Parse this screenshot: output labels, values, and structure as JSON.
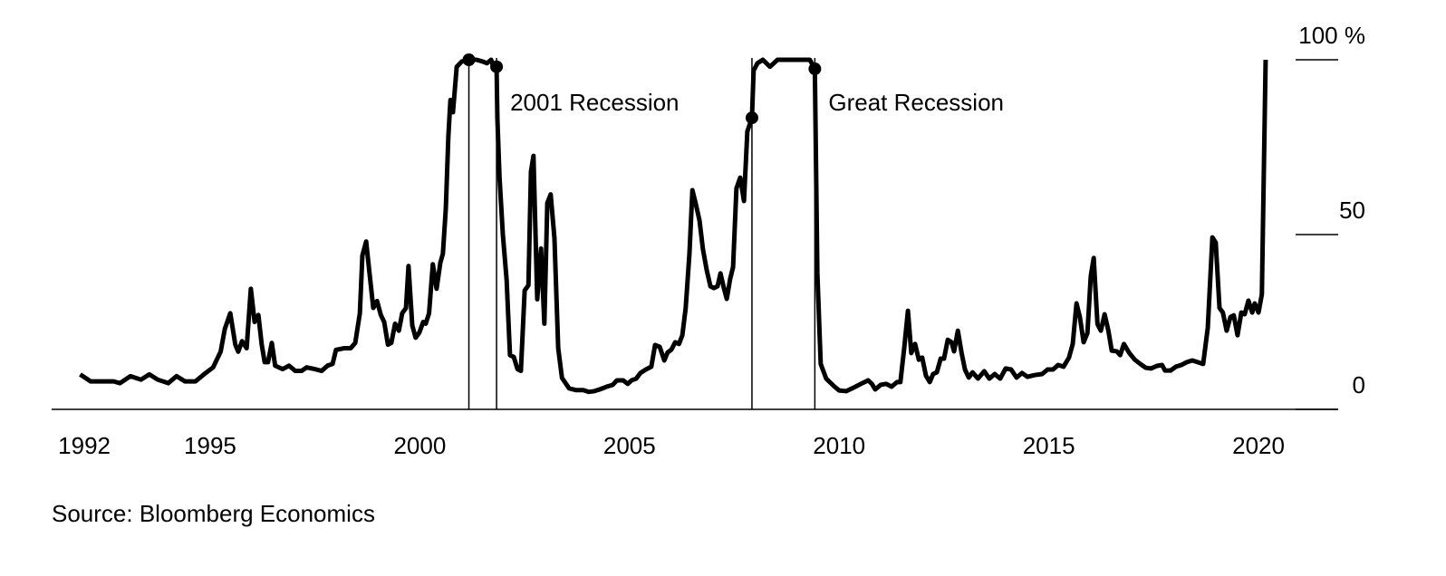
{
  "chart_data": {
    "type": "line",
    "x": [
      1991.9,
      1992.15,
      1992.5,
      1992.7,
      1992.85,
      1993.1,
      1993.35,
      1993.55,
      1993.75,
      1994.0,
      1994.2,
      1994.4,
      1994.65,
      1994.85,
      1995.07,
      1995.25,
      1995.35,
      1995.48,
      1995.6,
      1995.67,
      1995.76,
      1995.87,
      1995.97,
      1996.06,
      1996.15,
      1996.23,
      1996.3,
      1996.38,
      1996.47,
      1996.55,
      1996.73,
      1996.88,
      1997.03,
      1997.18,
      1997.3,
      1997.5,
      1997.66,
      1997.8,
      1997.92,
      1998.0,
      1998.2,
      1998.35,
      1998.46,
      1998.57,
      1998.63,
      1998.72,
      1998.8,
      1998.89,
      1998.98,
      1999.07,
      1999.15,
      1999.24,
      1999.32,
      1999.41,
      1999.5,
      1999.58,
      1999.67,
      1999.73,
      1999.82,
      1999.9,
      1999.99,
      2000.08,
      2000.14,
      2000.22,
      2000.31,
      2000.4,
      2000.49,
      2000.55,
      2000.62,
      2000.68,
      2000.73,
      2000.79,
      2000.88,
      2001.0,
      2001.17,
      2001.35,
      2001.5,
      2001.6,
      2001.7,
      2001.77,
      2001.83,
      2001.85,
      2001.9,
      2001.98,
      2002.07,
      2002.15,
      2002.24,
      2002.33,
      2002.41,
      2002.5,
      2002.59,
      2002.65,
      2002.71,
      2002.8,
      2002.89,
      2002.97,
      2003.04,
      2003.12,
      2003.21,
      2003.3,
      2003.39,
      2003.56,
      2003.73,
      2003.9,
      2004.03,
      2004.16,
      2004.29,
      2004.46,
      2004.6,
      2004.7,
      2004.85,
      2004.96,
      2005.05,
      2005.16,
      2005.26,
      2005.39,
      2005.52,
      2005.61,
      2005.72,
      2005.83,
      2005.91,
      2006.0,
      2006.09,
      2006.18,
      2006.26,
      2006.34,
      2006.43,
      2006.5,
      2006.58,
      2006.67,
      2006.75,
      2006.84,
      2006.93,
      2007.01,
      2007.1,
      2007.17,
      2007.25,
      2007.32,
      2007.4,
      2007.47,
      2007.55,
      2007.64,
      2007.73,
      2007.81,
      2007.92,
      2007.96,
      2008.05,
      2008.18,
      2008.35,
      2008.53,
      2009.3,
      2009.42,
      2009.48,
      2009.56,
      2009.69,
      2009.87,
      2010.0,
      2010.17,
      2010.34,
      2010.52,
      2010.69,
      2010.78,
      2010.86,
      2010.99,
      2011.12,
      2011.25,
      2011.38,
      2011.46,
      2011.55,
      2011.64,
      2011.72,
      2011.81,
      2011.9,
      2011.98,
      2012.07,
      2012.16,
      2012.24,
      2012.33,
      2012.42,
      2012.5,
      2012.59,
      2012.68,
      2012.74,
      2012.83,
      2012.92,
      2013.0,
      2013.09,
      2013.18,
      2013.31,
      2013.46,
      2013.58,
      2013.71,
      2013.84,
      2013.97,
      2014.1,
      2014.23,
      2014.36,
      2014.49,
      2014.66,
      2014.84,
      2014.97,
      2015.1,
      2015.22,
      2015.35,
      2015.48,
      2015.57,
      2015.66,
      2015.74,
      2015.83,
      2015.92,
      2016.0,
      2016.07,
      2016.16,
      2016.24,
      2016.33,
      2016.42,
      2016.5,
      2016.62,
      2016.7,
      2016.79,
      2016.92,
      2017.05,
      2017.18,
      2017.31,
      2017.44,
      2017.57,
      2017.7,
      2017.77,
      2017.9,
      2018.03,
      2018.16,
      2018.29,
      2018.42,
      2018.55,
      2018.68,
      2018.79,
      2018.9,
      2018.98,
      2019.07,
      2019.15,
      2019.24,
      2019.33,
      2019.41,
      2019.5,
      2019.59,
      2019.67,
      2019.76,
      2019.85,
      2019.91,
      2020.0,
      2020.08,
      2020.17
    ],
    "values": [
      10,
      8,
      8,
      8,
      7.5,
      9.5,
      8.5,
      10,
      8.5,
      7.5,
      9.5,
      8,
      8,
      10,
      12,
      16.5,
      23,
      27.5,
      18.5,
      16.5,
      19.5,
      17.5,
      34.5,
      25,
      27,
      18.5,
      13.5,
      13.5,
      19,
      12.5,
      11.5,
      12.5,
      11,
      11,
      12,
      11.5,
      11,
      12.5,
      13,
      17,
      17.5,
      17.5,
      19,
      27.5,
      44,
      48,
      39,
      29,
      31,
      27,
      25,
      18.5,
      19,
      24.5,
      22.5,
      27.5,
      29,
      41,
      24,
      20.5,
      22,
      25,
      24.5,
      27.5,
      41.5,
      34.5,
      42,
      44.5,
      57.5,
      78,
      88.5,
      85,
      98,
      99.5,
      100,
      100,
      99.5,
      99,
      100,
      97.5,
      98,
      83,
      66.5,
      50,
      37,
      15.5,
      15,
      11.5,
      11,
      34,
      35.5,
      68,
      72.5,
      31.5,
      46,
      24.5,
      59,
      61.5,
      49,
      17.5,
      9,
      6,
      5.5,
      5.5,
      5,
      5.2,
      5.7,
      6.5,
      7,
      8.3,
      8.3,
      7.3,
      8.3,
      8.8,
      10.4,
      11.4,
      12.2,
      18.4,
      17.9,
      14,
      16.3,
      17.1,
      19.2,
      18.7,
      21.2,
      29,
      44.6,
      62.7,
      58.8,
      54,
      45.9,
      39.9,
      35.2,
      34.7,
      35.2,
      38.9,
      34.7,
      31.6,
      37.3,
      40.7,
      63.2,
      66.3,
      59.6,
      79.5,
      83.4,
      96.9,
      99,
      100,
      98,
      100,
      100,
      97.4,
      39,
      13,
      8.8,
      6.7,
      5.4,
      5.2,
      6.2,
      7.3,
      8.3,
      7.3,
      5.7,
      7,
      7.3,
      6.5,
      7.8,
      7.8,
      17.4,
      28.2,
      16.1,
      18.7,
      14.2,
      14.8,
      9.6,
      7.8,
      10.1,
      10.6,
      14.5,
      14.5,
      19.9,
      19.2,
      16.6,
      22.5,
      16.1,
      11.4,
      9.1,
      10.6,
      8.8,
      10.9,
      8.8,
      10.1,
      8.8,
      11.7,
      11.4,
      9.1,
      10.4,
      9.3,
      9.8,
      10.1,
      11.4,
      11.4,
      12.7,
      12.2,
      14.8,
      18.7,
      30.3,
      26.4,
      19.2,
      21.8,
      38.1,
      43.3,
      24.4,
      22.5,
      27.2,
      22.5,
      16.8,
      16.6,
      15.5,
      18.7,
      16.1,
      14.2,
      13,
      11.9,
      11.7,
      12.4,
      12.7,
      11.1,
      11.1,
      12.2,
      12.7,
      13.5,
      14,
      13.5,
      13,
      23.3,
      49.2,
      47.7,
      29,
      27.7,
      22.5,
      26.4,
      26.9,
      21.2,
      27.7,
      27.2,
      31.1,
      27.7,
      30.3,
      27.7,
      32.9,
      100
    ],
    "color": "#000000",
    "xlim": [
      1991.22,
      2021.9
    ],
    "xticks": [
      1992,
      1995,
      2000,
      2005,
      2010,
      2015,
      2020
    ],
    "ylim": [
      0,
      100
    ],
    "yticks": [
      0,
      50,
      {
        "value": 100,
        "label": "100 %"
      }
    ],
    "annotations": [
      {
        "label": "2001 Recession",
        "start": 2001.17,
        "end": 2001.83
      },
      {
        "label": "Great Recession",
        "start": 2007.92,
        "end": 2009.42
      }
    ],
    "source": "Source: Bloomberg Economics"
  }
}
